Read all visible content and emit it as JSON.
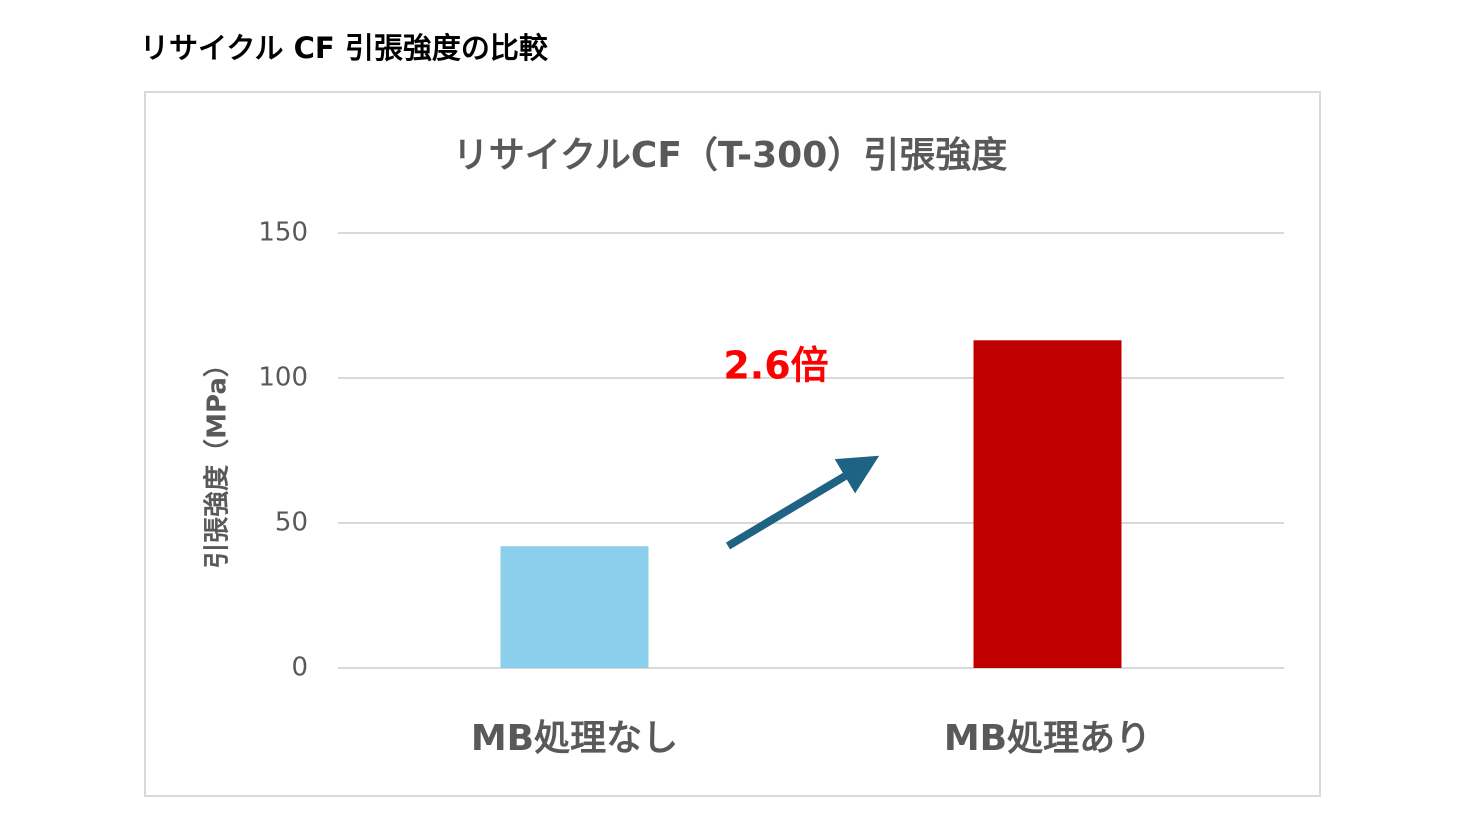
{
  "page_title": "リサイクル CF 引張強度の比較",
  "chart_data": {
    "type": "bar",
    "title": "リサイクルCF（T-300）引張強度",
    "y_label": "引張強度（MPa）",
    "categories": [
      "MB処理なし",
      "MB処理あり"
    ],
    "values": [
      42,
      113
    ],
    "colors": [
      "#8ccfec",
      "#c00000"
    ],
    "ylim": [
      0,
      150
    ],
    "yticks": [
      0,
      50,
      100,
      150
    ],
    "grid": true,
    "annotation": "2.6倍"
  }
}
